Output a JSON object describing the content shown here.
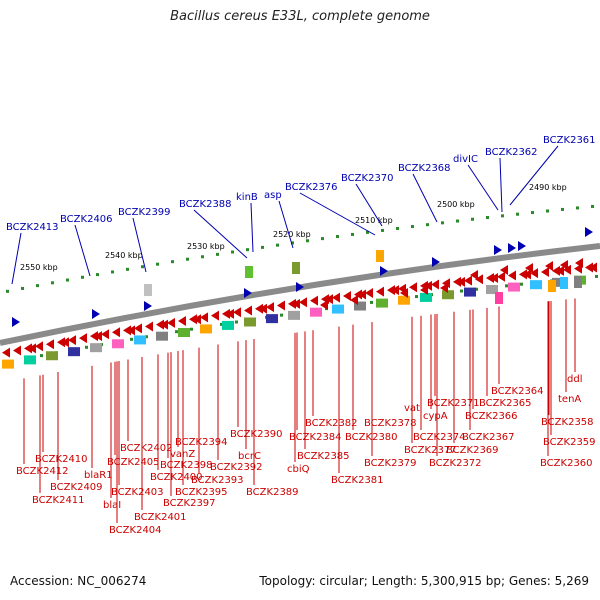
{
  "title": "Bacillus cereus E33L, complete genome",
  "accession": "Accession: NC_006274",
  "topology": "Topology: circular; Length: 5,300,915 bp; Genes: 5,269",
  "colors": {
    "blue": "#0000b0",
    "red": "#cc0000",
    "green": "#2a8a2a",
    "backbone": "#8a8a8a"
  },
  "kbp_ticks": [
    "2490 kbp",
    "2500 kbp",
    "2510 kbp",
    "2520 kbp",
    "2530 kbp",
    "2540 kbp",
    "2550 kbp"
  ],
  "top_labels": [
    "BCZK2361",
    "BCZK2362",
    "divIC",
    "BCZK2368",
    "BCZK2370",
    "BCZK2376",
    "asp",
    "kinB",
    "BCZK2388",
    "BCZK2399",
    "BCZK2406",
    "BCZK2413"
  ],
  "bottom_labels": [
    "ddl",
    "tenA",
    "BCZK2358",
    "BCZK2359",
    "BCZK2360",
    "BCZK2364",
    "BCZK2365",
    "BCZK2366",
    "BCZK2367",
    "BCZK2369",
    "BCZK2371",
    "BCZK2372",
    "cypA",
    "vat",
    "BCZK2374",
    "BCZK2377",
    "BCZK2378",
    "BCZK2379",
    "BCZK2380",
    "BCZK2381",
    "BCZK2382",
    "BCZK2384",
    "BCZK2385",
    "cbiQ",
    "BCZK2389",
    "BCZK2390",
    "bcrC",
    "BCZK2392",
    "BCZK2393",
    "BCZK2394",
    "BCZK2395",
    "BCZK2397",
    "BCZK2398",
    "vanZ",
    "BCZK2400",
    "BCZK2401",
    "BCZK2402",
    "BCZK2403",
    "BCZK2404",
    "BCZK2405",
    "blaI",
    "blaR1",
    "BCZK2409",
    "BCZK2410",
    "BCZK2411",
    "BCZK2412"
  ]
}
